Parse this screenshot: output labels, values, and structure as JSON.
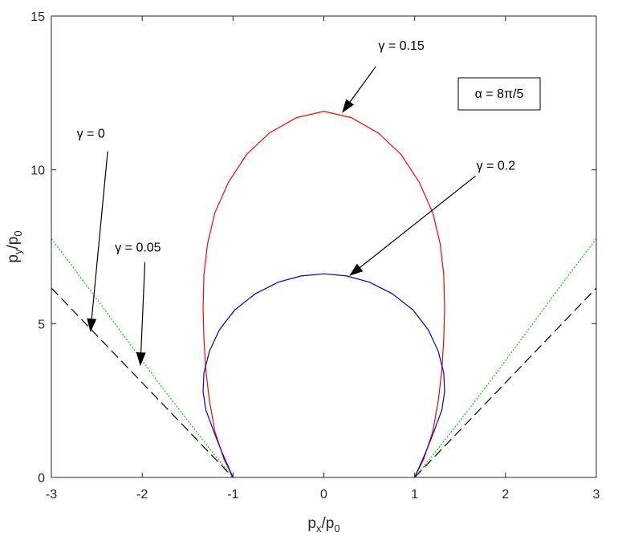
{
  "chart_data": {
    "type": "line",
    "title": "",
    "xlabel": {
      "main": "p",
      "sub": "x",
      "sep": "/p",
      "sub2": "0"
    },
    "ylabel": {
      "main": "p",
      "sub": "y",
      "sep": "/p",
      "sub2": "0"
    },
    "xlim": [
      -3,
      3
    ],
    "ylim": [
      0,
      15
    ],
    "xticks": [
      -3,
      -2,
      -1,
      0,
      1,
      2,
      3
    ],
    "yticks": [
      0,
      5,
      10,
      15
    ],
    "grid": false,
    "box": true,
    "series": [
      {
        "color": "#000000",
        "style": "dashed",
        "x": [
          -3,
          -1
        ],
        "y": [
          6.16,
          0
        ],
        "x2": [
          1,
          3
        ],
        "y2": [
          0,
          6.16
        ]
      },
      {
        "color": "#00cc00",
        "style": "dotted",
        "x": [
          -3,
          -2.7,
          -2.4,
          -2.1,
          -1.8,
          -1.5,
          -1.2,
          -1.0
        ],
        "y": [
          7.76,
          6.6,
          5.4,
          4.2,
          3.0,
          1.85,
          0.72,
          0
        ],
        "x2": [
          1.0,
          1.2,
          1.5,
          1.8,
          2.1,
          2.4,
          2.7,
          3
        ],
        "y2": [
          0,
          0.72,
          1.85,
          3.0,
          4.2,
          5.4,
          6.6,
          7.76
        ]
      },
      {
        "color": "#ff0000",
        "style": "solid",
        "x": [
          -1.0,
          -1.1,
          -1.2,
          -1.26,
          -1.3,
          -1.32,
          -1.33,
          -1.32,
          -1.28,
          -1.2,
          -1.05,
          -0.85,
          -0.6,
          -0.3,
          0.0,
          0.3,
          0.6,
          0.85,
          1.05,
          1.2,
          1.28,
          1.32,
          1.33,
          1.32,
          1.3,
          1.26,
          1.2,
          1.1,
          1.0
        ],
        "y": [
          0,
          0.6,
          1.5,
          2.5,
          3.5,
          4.5,
          5.5,
          6.6,
          7.6,
          8.6,
          9.6,
          10.5,
          11.2,
          11.7,
          11.9,
          11.7,
          11.2,
          10.5,
          9.6,
          8.6,
          7.6,
          6.6,
          5.5,
          4.5,
          3.5,
          2.5,
          1.5,
          0.6,
          0
        ]
      },
      {
        "color": "#0000cc",
        "style": "solid",
        "x": [
          -1.0,
          -1.12,
          -1.2,
          -1.3,
          -1.33,
          -1.32,
          -1.26,
          -1.15,
          -0.98,
          -0.75,
          -0.5,
          -0.25,
          0.0,
          0.25,
          0.5,
          0.75,
          0.98,
          1.15,
          1.26,
          1.32,
          1.33,
          1.3,
          1.2,
          1.12,
          1.0
        ],
        "y": [
          0,
          0.8,
          1.4,
          2.2,
          2.8,
          3.4,
          4.1,
          4.8,
          5.45,
          5.98,
          6.35,
          6.55,
          6.62,
          6.55,
          6.35,
          5.98,
          5.45,
          4.8,
          4.1,
          3.4,
          2.8,
          2.2,
          1.4,
          0.8,
          0
        ]
      }
    ],
    "annotations": [
      {
        "text": "γ = 0.15",
        "tx": 0.6,
        "ty": 13.9,
        "ax_from": [
          0.57,
          13.35
        ],
        "ax_to": [
          0.2,
          11.85
        ]
      },
      {
        "text": "γ = 0.2",
        "tx": 1.68,
        "ty": 10.0,
        "ax_from": [
          1.67,
          9.8
        ],
        "ax_to": [
          0.28,
          6.55
        ]
      },
      {
        "text": "γ = 0",
        "tx": -2.72,
        "ty": 11.05,
        "ax_from": [
          -2.38,
          10.6
        ],
        "ax_to": [
          -2.57,
          4.72
        ]
      },
      {
        "text": "γ = 0.05",
        "tx": -2.3,
        "ty": 7.35,
        "ax_from": [
          -1.97,
          7.0
        ],
        "ax_to": [
          -2.02,
          3.62
        ]
      }
    ],
    "textbox": {
      "text": "α = 8π/5",
      "x": 1.5,
      "y": 12.5
    }
  }
}
